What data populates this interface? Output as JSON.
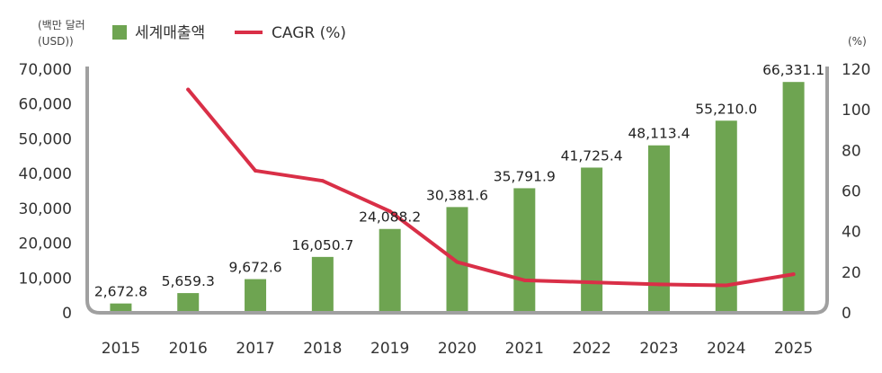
{
  "chart_data": {
    "type": "bar",
    "categories": [
      "2015",
      "2016",
      "2017",
      "2018",
      "2019",
      "2020",
      "2021",
      "2022",
      "2023",
      "2024",
      "2025"
    ],
    "series": [
      {
        "name": "세계매출액",
        "kind": "bar",
        "axis": "left",
        "values": [
          2672.8,
          5659.3,
          9672.6,
          16050.7,
          24088.2,
          30381.6,
          35791.9,
          41725.4,
          48113.4,
          55210.0,
          66331.1
        ],
        "labels": [
          "2,672.8",
          "5,659.3",
          "9,672.6",
          "16,050.7",
          "24,088.2",
          "30,381.6",
          "35,791.9",
          "41,725.4",
          "48,113.4",
          "55,210.0",
          "66,331.1"
        ]
      },
      {
        "name": "CAGR (%)",
        "kind": "line",
        "axis": "right",
        "values": [
          null,
          110,
          70,
          65,
          50,
          25,
          16,
          15,
          14,
          13.5,
          19
        ]
      }
    ],
    "y_left": {
      "unit_line1": "(백만 달러",
      "unit_line2": "(USD))",
      "range": [
        0,
        70000
      ],
      "ticks": [
        "0",
        "10,000",
        "20,000",
        "30,000",
        "40,000",
        "50,000",
        "60,000",
        "70,000"
      ]
    },
    "y_right": {
      "unit": "(%)",
      "range": [
        0,
        120
      ],
      "ticks": [
        "0",
        "20",
        "40",
        "60",
        "80",
        "100",
        "120"
      ]
    },
    "legend_position": "top-left",
    "colors": {
      "bar": "#6ea451",
      "line": "#d92f47",
      "frame": "#a0a0a0",
      "text": "#333333"
    }
  }
}
